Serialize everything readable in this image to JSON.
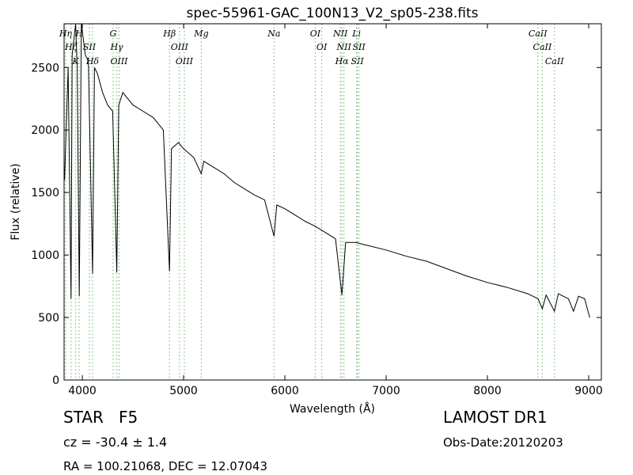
{
  "chart_data": {
    "type": "line",
    "title": "spec-55961-GAC_100N13_V2_sp05-238.fits",
    "xlabel": "Wavelength (Å)",
    "ylabel": "Flux (relative)",
    "x": [
      3825,
      3860,
      3889,
      3900,
      3934,
      3950,
      3970,
      3990,
      4030,
      4060,
      4101,
      4120,
      4150,
      4200,
      4250,
      4300,
      4340,
      4360,
      4400,
      4500,
      4600,
      4700,
      4800,
      4861,
      4880,
      4950,
      5000,
      5100,
      5175,
      5200,
      5300,
      5400,
      5500,
      5600,
      5700,
      5800,
      5893,
      5920,
      6000,
      6100,
      6200,
      6300,
      6400,
      6500,
      6563,
      6600,
      6700,
      6800,
      7000,
      7200,
      7400,
      7600,
      7800,
      8000,
      8200,
      8400,
      8500,
      8542,
      8580,
      8662,
      8700,
      8800,
      8850,
      8900,
      8960,
      9010
    ],
    "values": [
      1600,
      2500,
      650,
      2600,
      2850,
      2500,
      670,
      2850,
      2600,
      2550,
      850,
      2500,
      2450,
      2300,
      2200,
      2150,
      860,
      2200,
      2300,
      2200,
      2150,
      2100,
      2000,
      870,
      1850,
      1900,
      1850,
      1780,
      1650,
      1750,
      1700,
      1650,
      1580,
      1530,
      1480,
      1440,
      1150,
      1400,
      1370,
      1320,
      1270,
      1230,
      1180,
      1130,
      680,
      1100,
      1100,
      1080,
      1040,
      990,
      950,
      890,
      830,
      780,
      740,
      690,
      650,
      570,
      680,
      550,
      690,
      650,
      550,
      670,
      650,
      500
    ],
    "color": "#000000",
    "xlim": [
      3820,
      9125
    ],
    "ylim": [
      0,
      2850
    ],
    "xticks": [
      4000,
      5000,
      6000,
      7000,
      8000,
      9000
    ],
    "yticks": [
      0,
      500,
      1000,
      1500,
      2000,
      2500
    ],
    "grid": false,
    "line_color": "#7fbf7f",
    "lines": [
      {
        "label": "Hη",
        "x": 3835
      },
      {
        "label": "Hζ",
        "x": 3889
      },
      {
        "label": "K",
        "x": 3934
      },
      {
        "label": "H",
        "x": 3969
      },
      {
        "label": "SII",
        "x": 4070
      },
      {
        "label": "Hδ",
        "x": 4101
      },
      {
        "label": "G",
        "x": 4304
      },
      {
        "label": "Hγ",
        "x": 4340
      },
      {
        "label": "OIII",
        "x": 4363
      },
      {
        "label": "Hβ",
        "x": 4861
      },
      {
        "label": "OIII",
        "x": 4959
      },
      {
        "label": "OIII",
        "x": 5007
      },
      {
        "label": "Mg",
        "x": 5175
      },
      {
        "label": "Na",
        "x": 5893
      },
      {
        "label": "OI",
        "x": 6300
      },
      {
        "label": "OI",
        "x": 6364
      },
      {
        "label": "NII",
        "x": 6548
      },
      {
        "label": "Hα",
        "x": 6563
      },
      {
        "label": "NII",
        "x": 6583
      },
      {
        "label": "Li",
        "x": 6708
      },
      {
        "label": "SII",
        "x": 6716
      },
      {
        "label": "SII",
        "x": 6731
      },
      {
        "label": "CaII",
        "x": 8498
      },
      {
        "label": "CaII",
        "x": 8542
      },
      {
        "label": "CaII",
        "x": 8662
      }
    ]
  },
  "footer": {
    "object": "STAR   F5",
    "cz": "cz = -30.4 ± 1.4",
    "coords": "RA = 100.21068, DEC = 12.07043",
    "survey": "LAMOST DR1",
    "date": "Obs-Date:20120203"
  }
}
